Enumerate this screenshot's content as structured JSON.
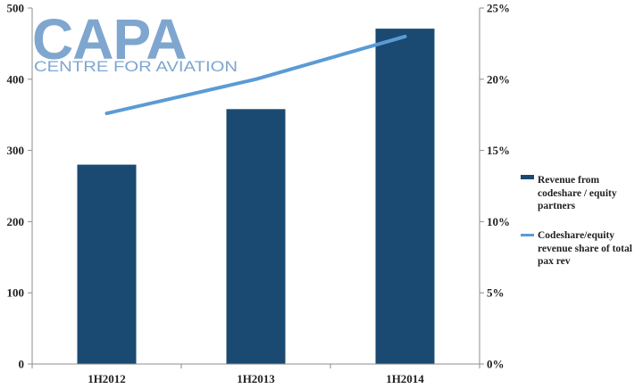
{
  "logo": {
    "main": "CAPA",
    "sub": "CENTRE FOR AVIATION"
  },
  "colors": {
    "bar": "#1a4a72",
    "line": "#5b9bd5",
    "axis": "#8c8c8c",
    "logo": "#7fa6cf"
  },
  "chart_data": {
    "type": "bar",
    "categories": [
      "1H2012",
      "1H2013",
      "1H2014"
    ],
    "series": [
      {
        "name": "Revenue from codeshare / equity partners",
        "type": "bar",
        "axis": "left",
        "values": [
          280,
          358,
          471
        ]
      },
      {
        "name": "Codeshare/equity revenue share of total pax rev",
        "type": "line",
        "axis": "right",
        "values": [
          17.6,
          20.0,
          23.0
        ]
      }
    ],
    "ylim": [
      0,
      500
    ],
    "y_ticks": [
      "0",
      "100",
      "200",
      "300",
      "400",
      "500"
    ],
    "y2lim": [
      0,
      25
    ],
    "y2_ticks": [
      "0%",
      "5%",
      "10%",
      "15%",
      "20%",
      "25%"
    ],
    "grid": false,
    "legend_position": "right"
  },
  "legend": [
    {
      "label_lines": [
        "Revenue from",
        "codeshare / equity",
        "partners"
      ],
      "kind": "bar"
    },
    {
      "label_lines": [
        "Codeshare/equity",
        "revenue share of total",
        "pax rev"
      ],
      "kind": "line"
    }
  ]
}
